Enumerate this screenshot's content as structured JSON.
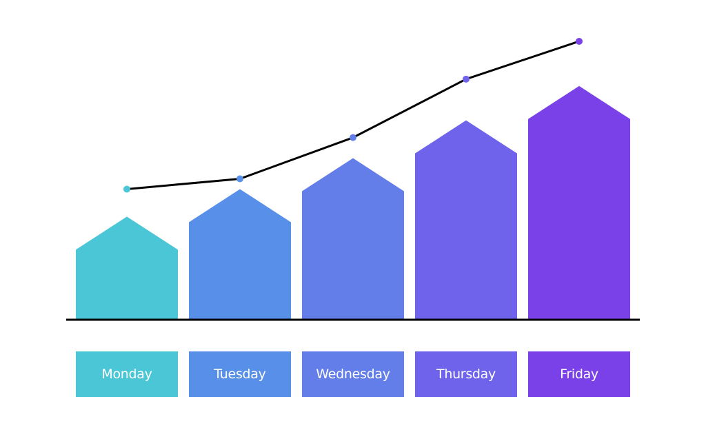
{
  "chart_data": {
    "type": "bar",
    "categories": [
      "Monday",
      "Tuesday",
      "Wednesday",
      "Thursday",
      "Friday"
    ],
    "values": [
      3.0,
      3.8,
      4.7,
      5.8,
      6.8
    ],
    "line_values": [
      3.8,
      4.1,
      5.3,
      7.0,
      8.1
    ],
    "ylim": [
      0,
      8.5
    ],
    "grid": false,
    "legend": "none",
    "colors": [
      "#4bc6d6",
      "#578fe9",
      "#637de9",
      "#6e63ea",
      "#7b41e8"
    ],
    "line_color": "#000000",
    "axis_color": "#000000"
  }
}
